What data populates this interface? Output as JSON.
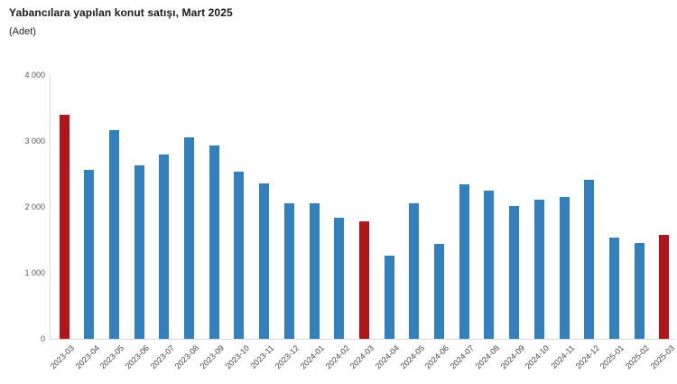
{
  "header": {
    "title": "Yabancılara yapılan konut satışı, Mart 2025",
    "subtitle": "(Adet)"
  },
  "chart_data": {
    "type": "bar",
    "title": "Yabancılara yapılan konut satışı, Mart 2025",
    "unit_label": "(Adet)",
    "categories": [
      "2023-03",
      "2023-04",
      "2023-05",
      "2023-06",
      "2023-07",
      "2023-08",
      "2023-09",
      "2023-10",
      "2023-11",
      "2023-12",
      "2024-01",
      "2024-02",
      "2024-03",
      "2024-04",
      "2024-05",
      "2024-06",
      "2024-07",
      "2024-08",
      "2024-09",
      "2024-10",
      "2024-11",
      "2024-12",
      "2025-01",
      "2025-02",
      "2025-03"
    ],
    "values": [
      3400,
      2555,
      3170,
      2630,
      2800,
      3055,
      2930,
      2530,
      2350,
      2060,
      2060,
      1840,
      1780,
      1265,
      2060,
      1435,
      2340,
      2250,
      2015,
      2110,
      2145,
      2410,
      1535,
      1450,
      1580
    ],
    "highlight_indices": [
      0,
      12,
      24
    ],
    "xlabel": "",
    "ylabel": "",
    "ylim": [
      0,
      4000
    ],
    "yticks": [
      0,
      1000,
      2000,
      3000,
      4000
    ],
    "ytick_labels": [
      "0",
      "1 000",
      "2 000",
      "3 000",
      "4 000"
    ],
    "grid": false,
    "legend": false,
    "colors": {
      "bar": "#3380BE",
      "highlight": "#AE161C",
      "axis_line": "#D9D9D9",
      "ytick_text": "#595959",
      "xtick_text": "#454545",
      "title_text": "#1A1A1A"
    }
  }
}
